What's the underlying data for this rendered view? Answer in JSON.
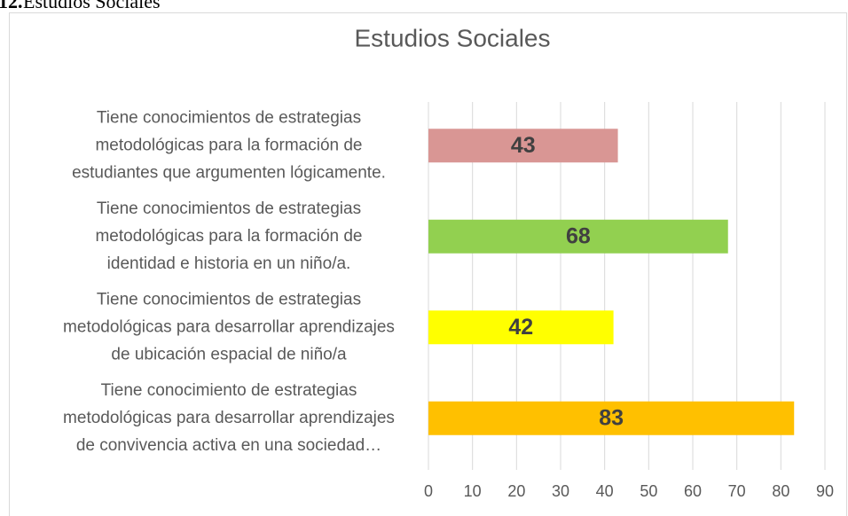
{
  "caption_number": "12.",
  "caption": "Estudios Sociales",
  "chart_data": {
    "type": "bar",
    "orientation": "horizontal",
    "title": "Estudios Sociales",
    "categories": [
      [
        "Tiene conocimientos de estrategias",
        "metodológicas para la formación de",
        "estudiantes que argumenten lógicamente."
      ],
      [
        "Tiene conocimientos de estrategias",
        "metodológicas para la formación de",
        "identidad e historia en un niño/a."
      ],
      [
        "Tiene conocimientos de estrategias",
        "metodológicas para desarrollar aprendizajes",
        "de ubicación espacial de niño/a"
      ],
      [
        "Tiene conocimiento de estrategias",
        "metodológicas para desarrollar aprendizajes",
        "de convivencia activa en una sociedad…"
      ]
    ],
    "values": [
      43,
      68,
      42,
      83
    ],
    "colors": [
      "#d99694",
      "#92d050",
      "#ffff00",
      "#ffc000"
    ],
    "xlim": [
      0,
      90
    ],
    "xticks": [
      0,
      10,
      20,
      30,
      40,
      50,
      60,
      70,
      80,
      90
    ],
    "grid": true
  }
}
